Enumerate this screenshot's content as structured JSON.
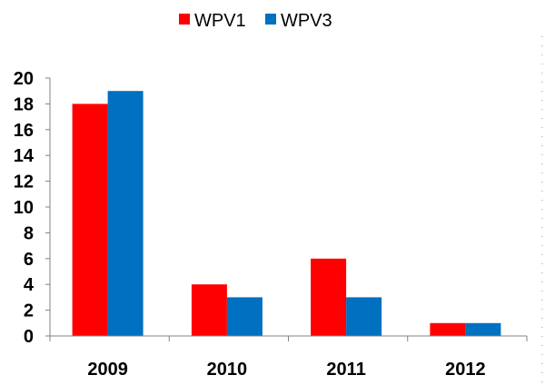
{
  "chart_data": {
    "type": "bar",
    "categories": [
      "2009",
      "2010",
      "2011",
      "2012"
    ],
    "series": [
      {
        "name": "WPV1",
        "values": [
          18,
          4,
          6,
          1
        ],
        "color": "#ff0000"
      },
      {
        "name": "WPV3",
        "values": [
          19,
          3,
          3,
          1
        ],
        "color": "#0070c0"
      }
    ],
    "title": "",
    "xlabel": "",
    "ylabel": "",
    "ylim": [
      0,
      20
    ],
    "yticks": [
      0,
      2,
      4,
      6,
      8,
      10,
      12,
      14,
      16,
      18,
      20
    ],
    "grid": false,
    "legend_position": "top-center"
  }
}
